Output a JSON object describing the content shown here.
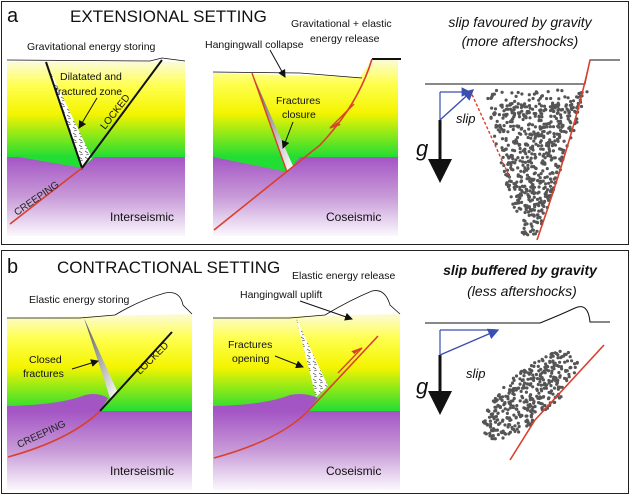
{
  "panel_a": {
    "letter": "a",
    "title": "EXTENSIONAL SETTING",
    "interseismic": {
      "caption": "Gravitational energy storing",
      "zone_label_1": "Dilatated and",
      "zone_label_2": "fractured zone",
      "locked": "LOCKED",
      "creeping": "CREEPING",
      "phase": "Interseismic"
    },
    "coseismic": {
      "caption_1": "Gravitational + elastic",
      "caption_2": "energy release",
      "hw_label": "Hangingwall collapse",
      "fract_1": "Fractures",
      "fract_2": "closure",
      "phase": "Coseismic"
    },
    "aftershocks": {
      "title_1": "slip favoured by gravity",
      "title_2": "(more aftershocks)",
      "g": "g",
      "slip": "slip"
    }
  },
  "panel_b": {
    "letter": "b",
    "title": "CONTRACTIONAL SETTING",
    "interseismic": {
      "caption": "Elastic energy storing",
      "fract_1": "Closed",
      "fract_2": "fractures",
      "locked": "LOCKED",
      "creeping": "CREEPING",
      "phase": "Interseismic"
    },
    "coseismic": {
      "caption": "Elastic energy release",
      "hw_label": "Hangingwall uplift",
      "fract_1": "Fractures",
      "fract_2": "opening",
      "phase": "Coseismic"
    },
    "aftershocks": {
      "title_1": "slip buffered by gravity",
      "title_2": "(less aftershocks)",
      "g": "g",
      "slip": "slip"
    }
  },
  "colors": {
    "fault": "#d9402e",
    "slip_arrow": "#3a4fb0",
    "seismicity": "#555555",
    "upper_crust_top": "#ffff40",
    "upper_crust_bottom": "#22dd33",
    "lower_crust": "#a455c4"
  }
}
